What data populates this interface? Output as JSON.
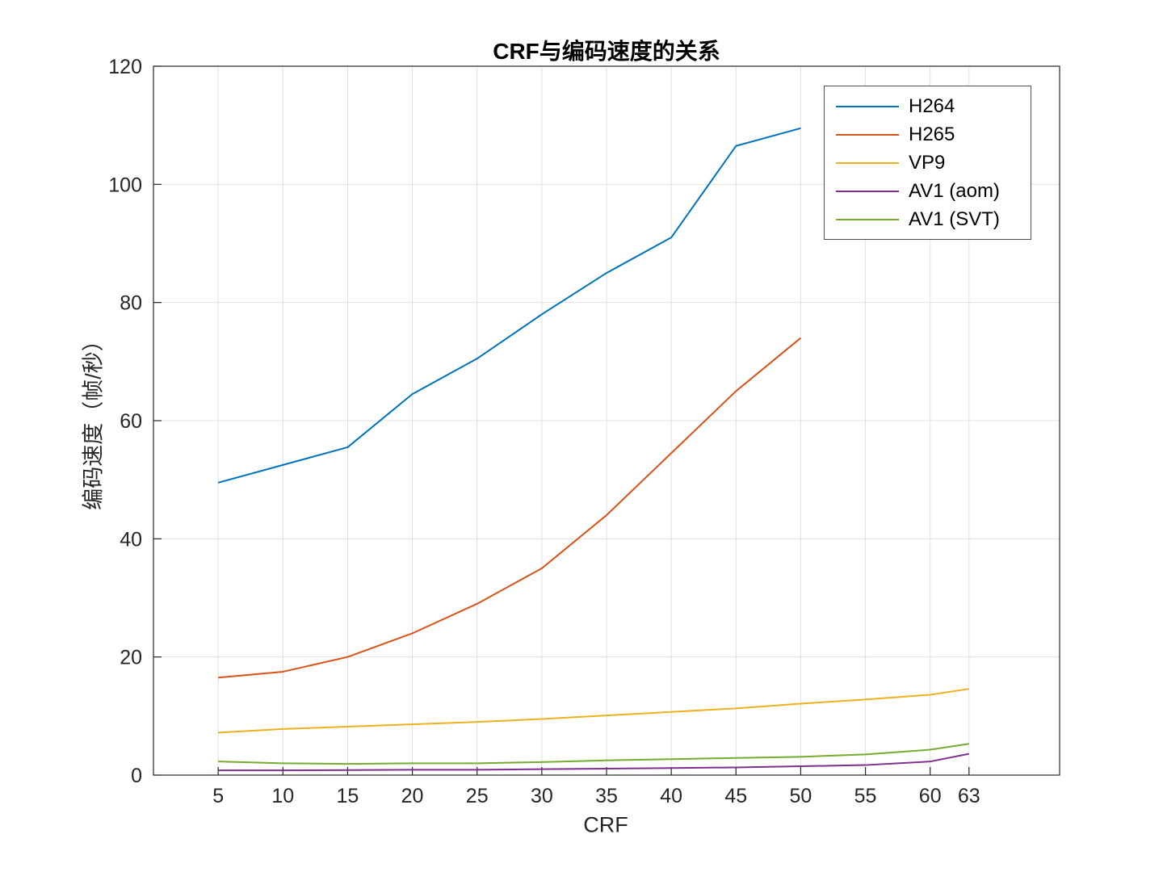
{
  "chart_data": {
    "type": "line",
    "title": "CRF与编码速度的关系",
    "xlabel": "CRF",
    "ylabel": "编码速度（帧/秒）",
    "xlim": [
      0,
      70
    ],
    "ylim": [
      0,
      120
    ],
    "x_ticks": [
      5,
      10,
      15,
      20,
      25,
      30,
      35,
      40,
      45,
      50,
      55,
      60,
      63
    ],
    "y_ticks": [
      0,
      20,
      40,
      60,
      80,
      100,
      120
    ],
    "grid": true,
    "grid_color": "#e0e0e0",
    "axis_color": "#262626",
    "legend_position": "top-right",
    "series": [
      {
        "name": "H264",
        "color": "#0072BD",
        "x": [
          5,
          10,
          15,
          20,
          25,
          30,
          35,
          40,
          45,
          50
        ],
        "y": [
          49.5,
          52.5,
          55.5,
          64.5,
          70.5,
          78,
          85,
          91,
          106.5,
          109.5
        ]
      },
      {
        "name": "H265",
        "color": "#D95319",
        "x": [
          5,
          10,
          15,
          20,
          25,
          30,
          35,
          40,
          45,
          50
        ],
        "y": [
          16.5,
          17.5,
          20,
          24,
          29,
          35,
          44,
          54.5,
          65,
          74
        ]
      },
      {
        "name": "VP9",
        "color": "#EDB120",
        "x": [
          5,
          10,
          15,
          20,
          25,
          30,
          35,
          40,
          45,
          50,
          55,
          60,
          63
        ],
        "y": [
          7.2,
          7.8,
          8.2,
          8.6,
          9.0,
          9.5,
          10.1,
          10.7,
          11.3,
          12.1,
          12.8,
          13.6,
          14.6
        ]
      },
      {
        "name": "AV1 (aom)",
        "color": "#7E2F8E",
        "x": [
          5,
          10,
          15,
          20,
          25,
          30,
          35,
          40,
          45,
          50,
          55,
          60,
          63
        ],
        "y": [
          0.8,
          0.8,
          0.85,
          0.9,
          0.9,
          1.0,
          1.1,
          1.2,
          1.3,
          1.5,
          1.7,
          2.3,
          3.6
        ]
      },
      {
        "name": "AV1 (SVT)",
        "color": "#77AC30",
        "x": [
          5,
          10,
          15,
          20,
          25,
          30,
          35,
          40,
          45,
          50,
          55,
          60,
          63
        ],
        "y": [
          2.3,
          2.0,
          1.9,
          2.0,
          2.0,
          2.2,
          2.5,
          2.7,
          2.9,
          3.1,
          3.5,
          4.3,
          5.3
        ]
      }
    ]
  }
}
